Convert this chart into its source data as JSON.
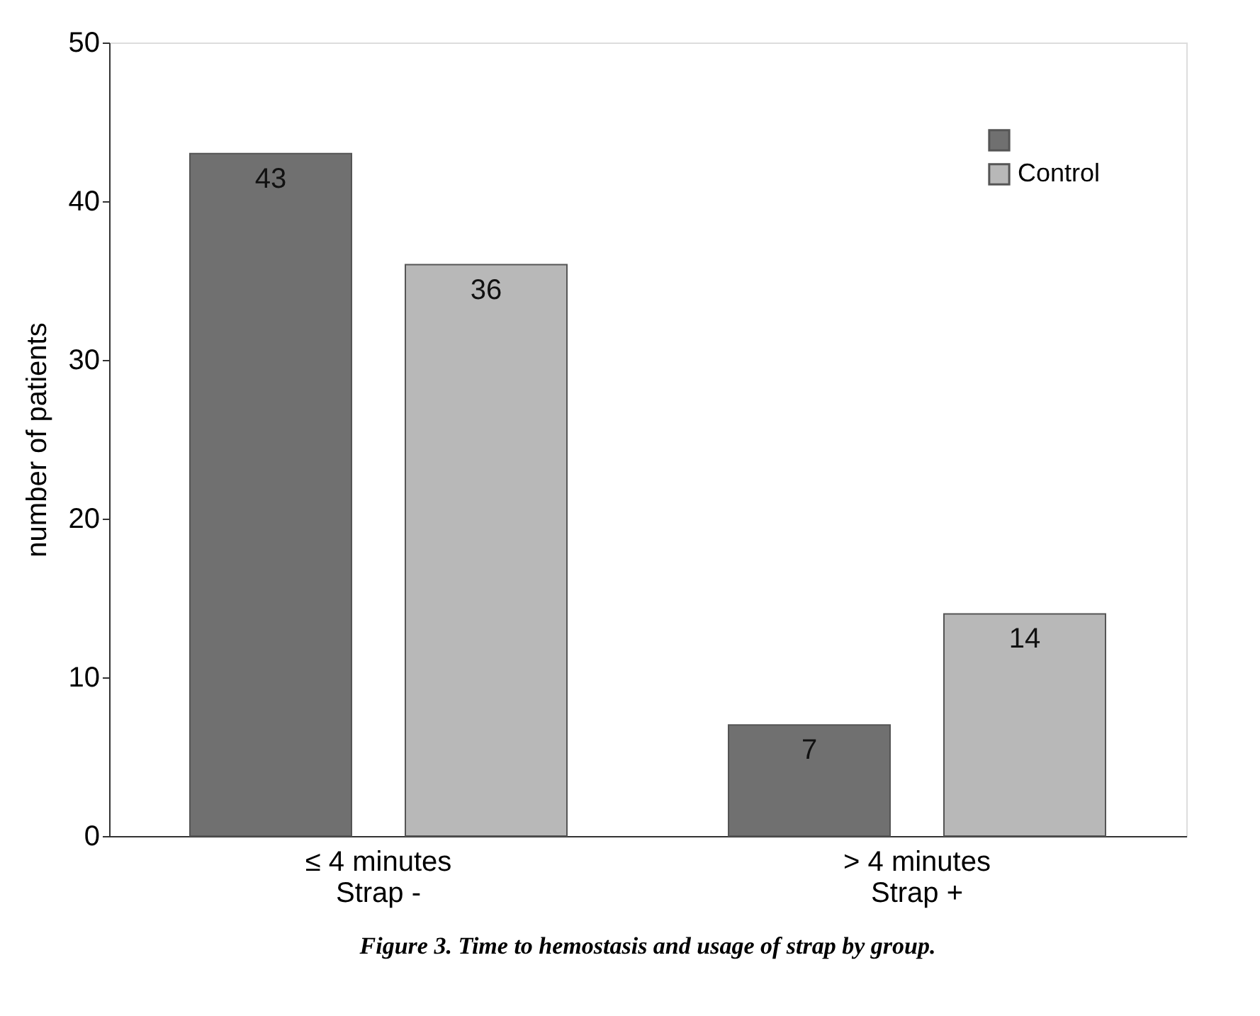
{
  "chart_data": {
    "type": "bar",
    "categories": [
      "≤  4 minutes\nStrap -",
      "> 4 minutes\nStrap +"
    ],
    "series": [
      {
        "color": "#707070",
        "values": [
          43,
          7
        ]
      },
      {
        "name": "Control",
        "color": "#b8b8b8",
        "values": [
          36,
          14
        ]
      }
    ],
    "ylabel": "number of patients",
    "ylim": [
      0,
      50
    ],
    "yticks": [
      0,
      10,
      20,
      30,
      40,
      50
    ],
    "grid": false,
    "legend": "top right",
    "data_labels": true,
    "annotations": [
      "Figure 3.    Time to hemostasis and usage of strap by group."
    ]
  }
}
